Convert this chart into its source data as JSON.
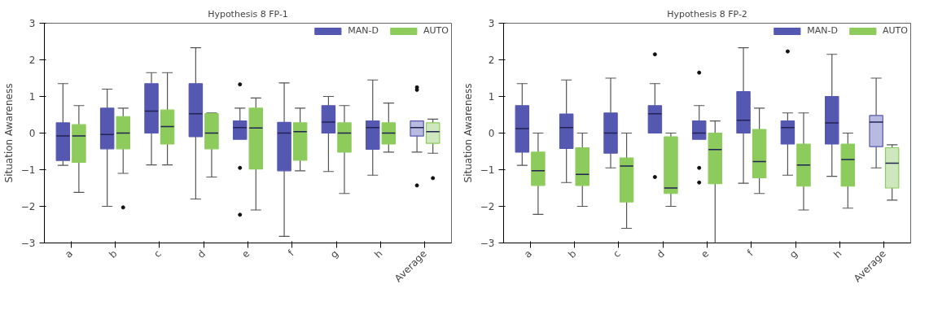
{
  "chart_data": [
    {
      "type": "box",
      "title": "Hypothesis 8 FP-1",
      "ylabel": "Situation Awareness",
      "categories": [
        "a",
        "b",
        "c",
        "d",
        "e",
        "f",
        "g",
        "h",
        "Average"
      ],
      "ylim": [
        -3,
        3
      ],
      "yticks": [
        -3,
        -2,
        -1,
        0,
        1,
        2,
        3
      ],
      "grid": false,
      "legend": "top right",
      "series": [
        {
          "name": "MAN-D",
          "color": "#5558b0",
          "colors": [
            "#5558b0",
            "#5558b0",
            "#5558b0",
            "#5558b0",
            "#5558b0",
            "#5558b0",
            "#5558b0",
            "#5558b0",
            "#b9badf"
          ],
          "boxes": [
            {
              "low": -0.88,
              "q1": -0.75,
              "median": -0.08,
              "q3": 0.28,
              "high": 1.35
            },
            {
              "low": -2.0,
              "q1": -0.43,
              "median": -0.04,
              "q3": 0.68,
              "high": 1.2
            },
            {
              "low": -0.87,
              "q1": 0,
              "median": 0.6,
              "q3": 1.35,
              "high": 1.65
            },
            {
              "low": -1.8,
              "q1": -0.1,
              "median": 0.53,
              "q3": 1.35,
              "high": 2.33
            },
            {
              "low": -0.17,
              "q1": -0.17,
              "median": 0.15,
              "q3": 0.33,
              "high": 0.68,
              "outliers": [
                1.33,
                -0.95,
                -2.23
              ]
            },
            {
              "low": -2.82,
              "q1": -1.03,
              "median": 0,
              "q3": 0.29,
              "high": 1.37
            },
            {
              "low": -1.05,
              "q1": 0,
              "median": 0.3,
              "q3": 0.75,
              "high": 1.0
            },
            {
              "low": -1.15,
              "q1": -0.44,
              "median": 0.15,
              "q3": 0.33,
              "high": 1.45
            },
            {
              "low": -0.52,
              "q1": -0.08,
              "median": 0.15,
              "q3": 0.33,
              "high": 0.33,
              "outliers": [
                1.25,
                1.18,
                -1.43
              ]
            }
          ]
        },
        {
          "name": "AUTO",
          "color": "#8dcb5c",
          "colors": [
            "#8dcb5c",
            "#8dcb5c",
            "#8dcb5c",
            "#8dcb5c",
            "#8dcb5c",
            "#8dcb5c",
            "#8dcb5c",
            "#8dcb5c",
            "#cfe7bf"
          ],
          "boxes": [
            {
              "low": -1.62,
              "q1": -0.8,
              "median": -0.08,
              "q3": 0.23,
              "high": 0.75
            },
            {
              "low": -1.1,
              "q1": -0.43,
              "median": 0,
              "q3": 0.45,
              "high": 0.68,
              "outliers": [
                -2.03
              ]
            },
            {
              "low": -0.87,
              "q1": -0.3,
              "median": 0.18,
              "q3": 0.63,
              "high": 1.65
            },
            {
              "low": -1.2,
              "q1": -0.43,
              "median": 0,
              "q3": 0.53,
              "high": 0.55
            },
            {
              "low": -2.1,
              "q1": -0.98,
              "median": 0.14,
              "q3": 0.68,
              "high": 0.96
            },
            {
              "low": -1.03,
              "q1": -0.74,
              "median": 0.04,
              "q3": 0.28,
              "high": 0.68
            },
            {
              "low": -1.65,
              "q1": -0.52,
              "median": 0,
              "q3": 0.28,
              "high": 0.75
            },
            {
              "low": -0.52,
              "q1": -0.3,
              "median": 0,
              "q3": 0.28,
              "high": 0.82
            },
            {
              "low": -0.55,
              "q1": -0.28,
              "median": 0.04,
              "q3": 0.28,
              "high": 0.38,
              "outliers": [
                -1.23
              ]
            }
          ]
        }
      ]
    },
    {
      "type": "box",
      "title": "Hypothesis 8 FP-2",
      "ylabel": "Situation Awareness",
      "categories": [
        "a",
        "b",
        "c",
        "d",
        "e",
        "f",
        "g",
        "h",
        "Average"
      ],
      "ylim": [
        -3,
        3
      ],
      "yticks": [
        -3,
        -2,
        -1,
        0,
        1,
        2,
        3
      ],
      "grid": false,
      "legend": "top right",
      "series": [
        {
          "name": "MAN-D",
          "color": "#5558b0",
          "colors": [
            "#5558b0",
            "#5558b0",
            "#5558b0",
            "#5558b0",
            "#5558b0",
            "#5558b0",
            "#5558b0",
            "#5558b0",
            "#b9badf"
          ],
          "boxes": [
            {
              "low": -0.88,
              "q1": -0.52,
              "median": 0.12,
              "q3": 0.75,
              "high": 1.35
            },
            {
              "low": -1.35,
              "q1": -0.42,
              "median": 0.15,
              "q3": 0.52,
              "high": 1.45
            },
            {
              "low": -0.95,
              "q1": -0.55,
              "median": 0,
              "q3": 0.55,
              "high": 1.5
            },
            {
              "low": 0,
              "q1": 0,
              "median": 0.53,
              "q3": 0.75,
              "high": 1.35,
              "outliers": [
                2.15,
                -1.2
              ]
            },
            {
              "low": -0.17,
              "q1": -0.17,
              "median": 0,
              "q3": 0.33,
              "high": 0.75,
              "outliers": [
                1.65,
                -0.95,
                -1.35
              ]
            },
            {
              "low": -1.37,
              "q1": 0,
              "median": 0.35,
              "q3": 1.13,
              "high": 2.33
            },
            {
              "low": -1.15,
              "q1": -0.3,
              "median": 0.15,
              "q3": 0.33,
              "high": 0.55,
              "outliers": [
                2.23
              ]
            },
            {
              "low": -1.18,
              "q1": -0.3,
              "median": 0.28,
              "q3": 1.0,
              "high": 2.15
            },
            {
              "low": -0.95,
              "q1": -0.37,
              "median": 0.3,
              "q3": 0.48,
              "high": 1.5
            }
          ]
        },
        {
          "name": "AUTO",
          "color": "#8dcb5c",
          "colors": [
            "#8dcb5c",
            "#8dcb5c",
            "#8dcb5c",
            "#8dcb5c",
            "#8dcb5c",
            "#8dcb5c",
            "#8dcb5c",
            "#8dcb5c",
            "#cfe7bf"
          ],
          "boxes": [
            {
              "low": -2.22,
              "q1": -1.43,
              "median": -1.03,
              "q3": -0.52,
              "high": 0
            },
            {
              "low": -2.0,
              "q1": -1.43,
              "median": -1.13,
              "q3": -0.4,
              "high": 0
            },
            {
              "low": -2.6,
              "q1": -1.88,
              "median": -0.9,
              "q3": -0.68,
              "high": 0
            },
            {
              "low": -2.0,
              "q1": -1.65,
              "median": -1.5,
              "q3": -0.1,
              "high": 0
            },
            {
              "low": -3.0,
              "q1": -1.38,
              "median": -0.45,
              "q3": 0,
              "high": 0.33
            },
            {
              "low": -1.65,
              "q1": -1.22,
              "median": -0.78,
              "q3": 0.1,
              "high": 0.68
            },
            {
              "low": -2.1,
              "q1": -1.45,
              "median": -0.87,
              "q3": -0.3,
              "high": 0.55
            },
            {
              "low": -2.05,
              "q1": -1.45,
              "median": -0.72,
              "q3": -0.3,
              "high": 0
            },
            {
              "low": -1.83,
              "q1": -1.5,
              "median": -0.82,
              "q3": -0.4,
              "high": -0.32
            }
          ]
        }
      ]
    }
  ]
}
